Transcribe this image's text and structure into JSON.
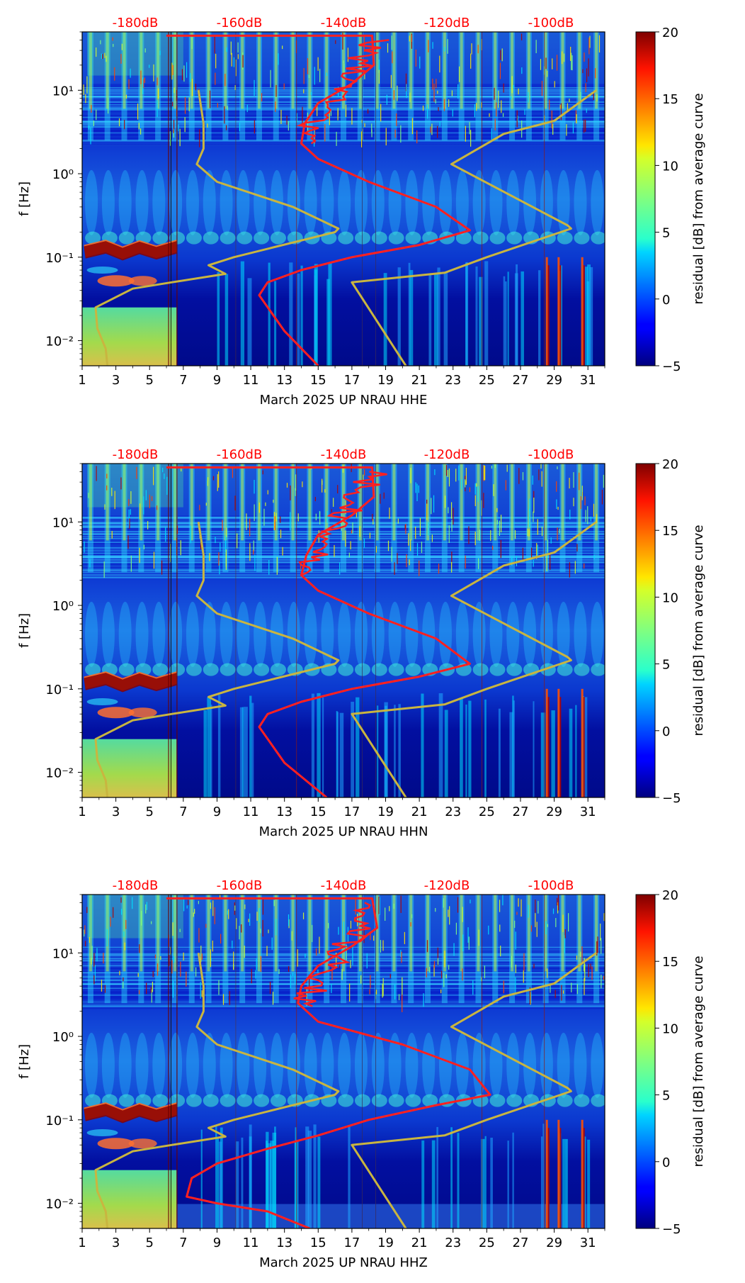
{
  "chart_data": [
    {
      "type": "heatmap",
      "title": "",
      "xlabel": "March 2025 UP NRAU  HHE",
      "ylabel": "f [Hz]",
      "x_ticks": [
        "1",
        "3",
        "5",
        "7",
        "9",
        "11",
        "13",
        "15",
        "17",
        "19",
        "21",
        "23",
        "25",
        "27",
        "29",
        "31"
      ],
      "xlim": [
        1,
        32
      ],
      "y_ticks": [
        "10⁻²",
        "10⁻¹",
        "10⁰",
        "10¹"
      ],
      "ylim": [
        0.005,
        50
      ],
      "top_labels": [
        "-180dB",
        "-160dB",
        "-140dB",
        "-120dB",
        "-100dB"
      ],
      "colorbar": {
        "label": "residual [dB] from average curve",
        "min": -5,
        "max": 20,
        "ticks": [
          "20",
          "15",
          "10",
          "5",
          "0",
          "−5"
        ]
      },
      "series": [
        {
          "name": "average PSD curve (red)",
          "color": "#ff2020",
          "points": [
            [
              15,
              0.005
            ],
            [
              13,
              0.013
            ],
            [
              11.5,
              0.035
            ],
            [
              12,
              0.05
            ],
            [
              14,
              0.07
            ],
            [
              17,
              0.1
            ],
            [
              21,
              0.14
            ],
            [
              24,
              0.21
            ],
            [
              22,
              0.4
            ],
            [
              18,
              0.8
            ],
            [
              15,
              1.5
            ],
            [
              14,
              2.3
            ],
            [
              14.2,
              4
            ],
            [
              15,
              7
            ],
            [
              17,
              12
            ],
            [
              18.3,
              20
            ],
            [
              18.2,
              45
            ],
            [
              6,
              45
            ]
          ]
        },
        {
          "name": "noise model curve (gold)",
          "color": "#c9b540",
          "points": [
            [
              2.5,
              0.005
            ],
            [
              2.4,
              0.008
            ],
            [
              1.9,
              0.014
            ],
            [
              1.8,
              0.025
            ],
            [
              4,
              0.042
            ],
            [
              6.3,
              0.05
            ],
            [
              9.5,
              0.063
            ],
            [
              8.5,
              0.08
            ],
            [
              10,
              0.1
            ],
            [
              16,
              0.2
            ],
            [
              16.2,
              0.22
            ],
            [
              13.5,
              0.4
            ],
            [
              9,
              0.8
            ],
            [
              7.8,
              1.3
            ],
            [
              8.2,
              2
            ],
            [
              8.2,
              3
            ],
            [
              8.2,
              4
            ],
            [
              7.9,
              10
            ]
          ]
        },
        {
          "name": "noise model curve right (gold)",
          "color": "#c9b540",
          "points": [
            [
              20.2,
              0.005
            ],
            [
              17,
              0.05
            ],
            [
              22.5,
              0.065
            ],
            [
              25,
              0.1
            ],
            [
              30,
              0.22
            ],
            [
              29.8,
              0.24
            ],
            [
              22.9,
              1.3
            ],
            [
              26,
              3
            ],
            [
              29,
              4.3
            ],
            [
              31.5,
              10
            ]
          ]
        }
      ]
    },
    {
      "type": "heatmap",
      "title": "",
      "xlabel": "March 2025 UP NRAU  HHN",
      "ylabel": "f [Hz]",
      "x_ticks": [
        "1",
        "3",
        "5",
        "7",
        "9",
        "11",
        "13",
        "15",
        "17",
        "19",
        "21",
        "23",
        "25",
        "27",
        "29",
        "31"
      ],
      "xlim": [
        1,
        32
      ],
      "y_ticks": [
        "10⁻²",
        "10⁻¹",
        "10⁰",
        "10¹"
      ],
      "ylim": [
        0.005,
        50
      ],
      "top_labels": [
        "-180dB",
        "-160dB",
        "-140dB",
        "-120dB",
        "-100dB"
      ],
      "colorbar": {
        "label": "residual [dB] from average curve",
        "min": -5,
        "max": 20,
        "ticks": [
          "20",
          "15",
          "10",
          "5",
          "0",
          "−5"
        ]
      },
      "series": [
        {
          "name": "average PSD curve (red)",
          "color": "#ff2020",
          "points": [
            [
              15.5,
              0.005
            ],
            [
              13,
              0.013
            ],
            [
              11.5,
              0.035
            ],
            [
              12,
              0.05
            ],
            [
              14,
              0.07
            ],
            [
              17,
              0.1
            ],
            [
              21,
              0.14
            ],
            [
              24,
              0.2
            ],
            [
              22,
              0.4
            ],
            [
              18,
              0.8
            ],
            [
              15,
              1.5
            ],
            [
              14,
              2.3
            ],
            [
              14.3,
              4
            ],
            [
              15,
              7
            ],
            [
              17,
              12
            ],
            [
              18.3,
              20
            ],
            [
              18.2,
              45
            ],
            [
              6,
              45
            ]
          ]
        },
        {
          "name": "noise model curve (gold)",
          "color": "#c9b540",
          "points": [
            [
              2.5,
              0.005
            ],
            [
              2.4,
              0.008
            ],
            [
              1.9,
              0.014
            ],
            [
              1.8,
              0.025
            ],
            [
              4,
              0.042
            ],
            [
              6.3,
              0.05
            ],
            [
              9.5,
              0.063
            ],
            [
              8.5,
              0.08
            ],
            [
              10,
              0.1
            ],
            [
              16,
              0.2
            ],
            [
              16.2,
              0.22
            ],
            [
              13.5,
              0.4
            ],
            [
              9,
              0.8
            ],
            [
              7.8,
              1.3
            ],
            [
              8.2,
              2
            ],
            [
              8.2,
              3
            ],
            [
              8.2,
              4
            ],
            [
              7.9,
              10
            ]
          ]
        },
        {
          "name": "noise model curve right (gold)",
          "color": "#c9b540",
          "points": [
            [
              20.2,
              0.005
            ],
            [
              17,
              0.05
            ],
            [
              22.5,
              0.065
            ],
            [
              25,
              0.1
            ],
            [
              30,
              0.22
            ],
            [
              29.8,
              0.24
            ],
            [
              22.9,
              1.3
            ],
            [
              26,
              3
            ],
            [
              29,
              4.3
            ],
            [
              31.5,
              10
            ]
          ]
        }
      ]
    },
    {
      "type": "heatmap",
      "title": "",
      "xlabel": "March 2025 UP NRAU  HHZ",
      "ylabel": "f [Hz]",
      "x_ticks": [
        "1",
        "3",
        "5",
        "7",
        "9",
        "11",
        "13",
        "15",
        "17",
        "19",
        "21",
        "23",
        "25",
        "27",
        "29",
        "31"
      ],
      "xlim": [
        1,
        32
      ],
      "y_ticks": [
        "10⁻²",
        "10⁻¹",
        "10⁰",
        "10¹"
      ],
      "ylim": [
        0.005,
        50
      ],
      "top_labels": [
        "-180dB",
        "-160dB",
        "-140dB",
        "-120dB",
        "-100dB"
      ],
      "colorbar": {
        "label": "residual [dB] from average curve",
        "min": -5,
        "max": 20,
        "ticks": [
          "20",
          "15",
          "10",
          "5",
          "0",
          "−5"
        ]
      },
      "series": [
        {
          "name": "average PSD curve (red)",
          "color": "#ff2020",
          "points": [
            [
              14.5,
              0.005
            ],
            [
              12,
              0.008
            ],
            [
              9,
              0.01
            ],
            [
              7.2,
              0.012
            ],
            [
              7.5,
              0.02
            ],
            [
              9,
              0.03
            ],
            [
              12,
              0.045
            ],
            [
              15,
              0.065
            ],
            [
              18,
              0.1
            ],
            [
              22,
              0.15
            ],
            [
              25.2,
              0.2
            ],
            [
              24,
              0.4
            ],
            [
              20,
              0.8
            ],
            [
              15,
              1.5
            ],
            [
              13.8,
              2.5
            ],
            [
              14,
              4
            ],
            [
              15,
              7
            ],
            [
              17,
              12
            ],
            [
              18.5,
              20
            ],
            [
              18.2,
              45
            ],
            [
              6,
              45
            ]
          ]
        },
        {
          "name": "noise model curve (gold)",
          "color": "#c9b540",
          "points": [
            [
              2.5,
              0.005
            ],
            [
              2.4,
              0.008
            ],
            [
              1.9,
              0.014
            ],
            [
              1.8,
              0.025
            ],
            [
              4,
              0.042
            ],
            [
              6.3,
              0.05
            ],
            [
              9.5,
              0.063
            ],
            [
              8.5,
              0.08
            ],
            [
              10,
              0.1
            ],
            [
              16,
              0.2
            ],
            [
              16.2,
              0.22
            ],
            [
              13.5,
              0.4
            ],
            [
              9,
              0.8
            ],
            [
              7.8,
              1.3
            ],
            [
              8.2,
              2
            ],
            [
              8.2,
              3
            ],
            [
              8.2,
              4
            ],
            [
              7.9,
              10
            ]
          ]
        },
        {
          "name": "noise model curve right (gold)",
          "color": "#c9b540",
          "points": [
            [
              20.2,
              0.005
            ],
            [
              17,
              0.05
            ],
            [
              22.5,
              0.065
            ],
            [
              25,
              0.1
            ],
            [
              30,
              0.22
            ],
            [
              29.8,
              0.24
            ],
            [
              22.9,
              1.3
            ],
            [
              26,
              3
            ],
            [
              29,
              4.3
            ],
            [
              31.5,
              10
            ]
          ]
        }
      ]
    }
  ]
}
